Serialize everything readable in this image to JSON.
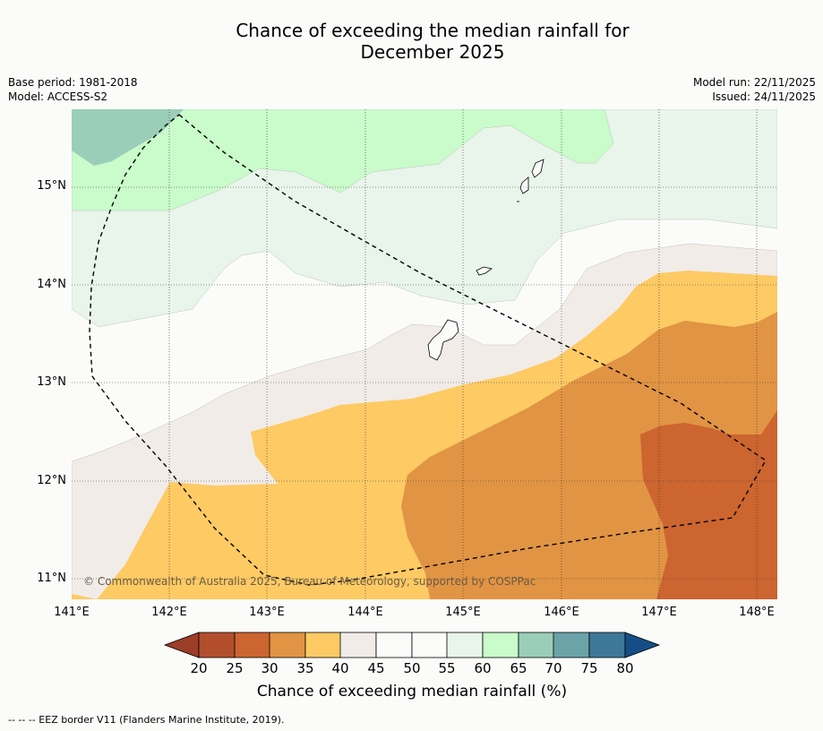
{
  "title_line1": "Chance of exceeding the median rainfall for",
  "title_line2": "December 2025",
  "base_period": "Base period: 1981-2018",
  "model": "Model: ACCESS-S2",
  "model_run": "Model run: 22/11/2025",
  "issued": "Issued: 24/11/2025",
  "copyright": "© Commonwealth of Australia 2025, Bureau of Meteorology, supported by COSPPac",
  "footer": "--  --  -- EEZ border V11 (Flanders Marine Institute, 2019).",
  "latitudes": [
    "15°N",
    "14°N",
    "13°N",
    "12°N",
    "11°N"
  ],
  "longitudes": [
    "141°E",
    "142°E",
    "143°E",
    "144°E",
    "145°E",
    "146°E",
    "147°E",
    "148°E"
  ],
  "colorbar": {
    "title": "Chance of exceeding median rainfall (%)",
    "ticks": [
      "20",
      "25",
      "30",
      "35",
      "40",
      "45",
      "50",
      "55",
      "60",
      "65",
      "70",
      "75",
      "80"
    ],
    "colors": [
      "#9c3d27",
      "#b34e2d",
      "#cc6530",
      "#e19444",
      "#fdca64",
      "#f1ece8",
      "#fbfcfa",
      "#fbfcfa",
      "#e9f4ea",
      "#c9fbcb",
      "#9bceb8",
      "#6ba3a9",
      "#3e7899",
      "#154e87"
    ]
  },
  "map_colors": {
    "c20_25": "#b34e2d",
    "c25_30": "#cc6530",
    "c30_35": "#e19444",
    "c35_40": "#fdca64",
    "c40_45": "#f1ece8",
    "c45_55": "#fbfcfa",
    "c55_60": "#e9f4ea",
    "c60_65": "#c9fbcb",
    "c65_70": "#9bceb8"
  }
}
